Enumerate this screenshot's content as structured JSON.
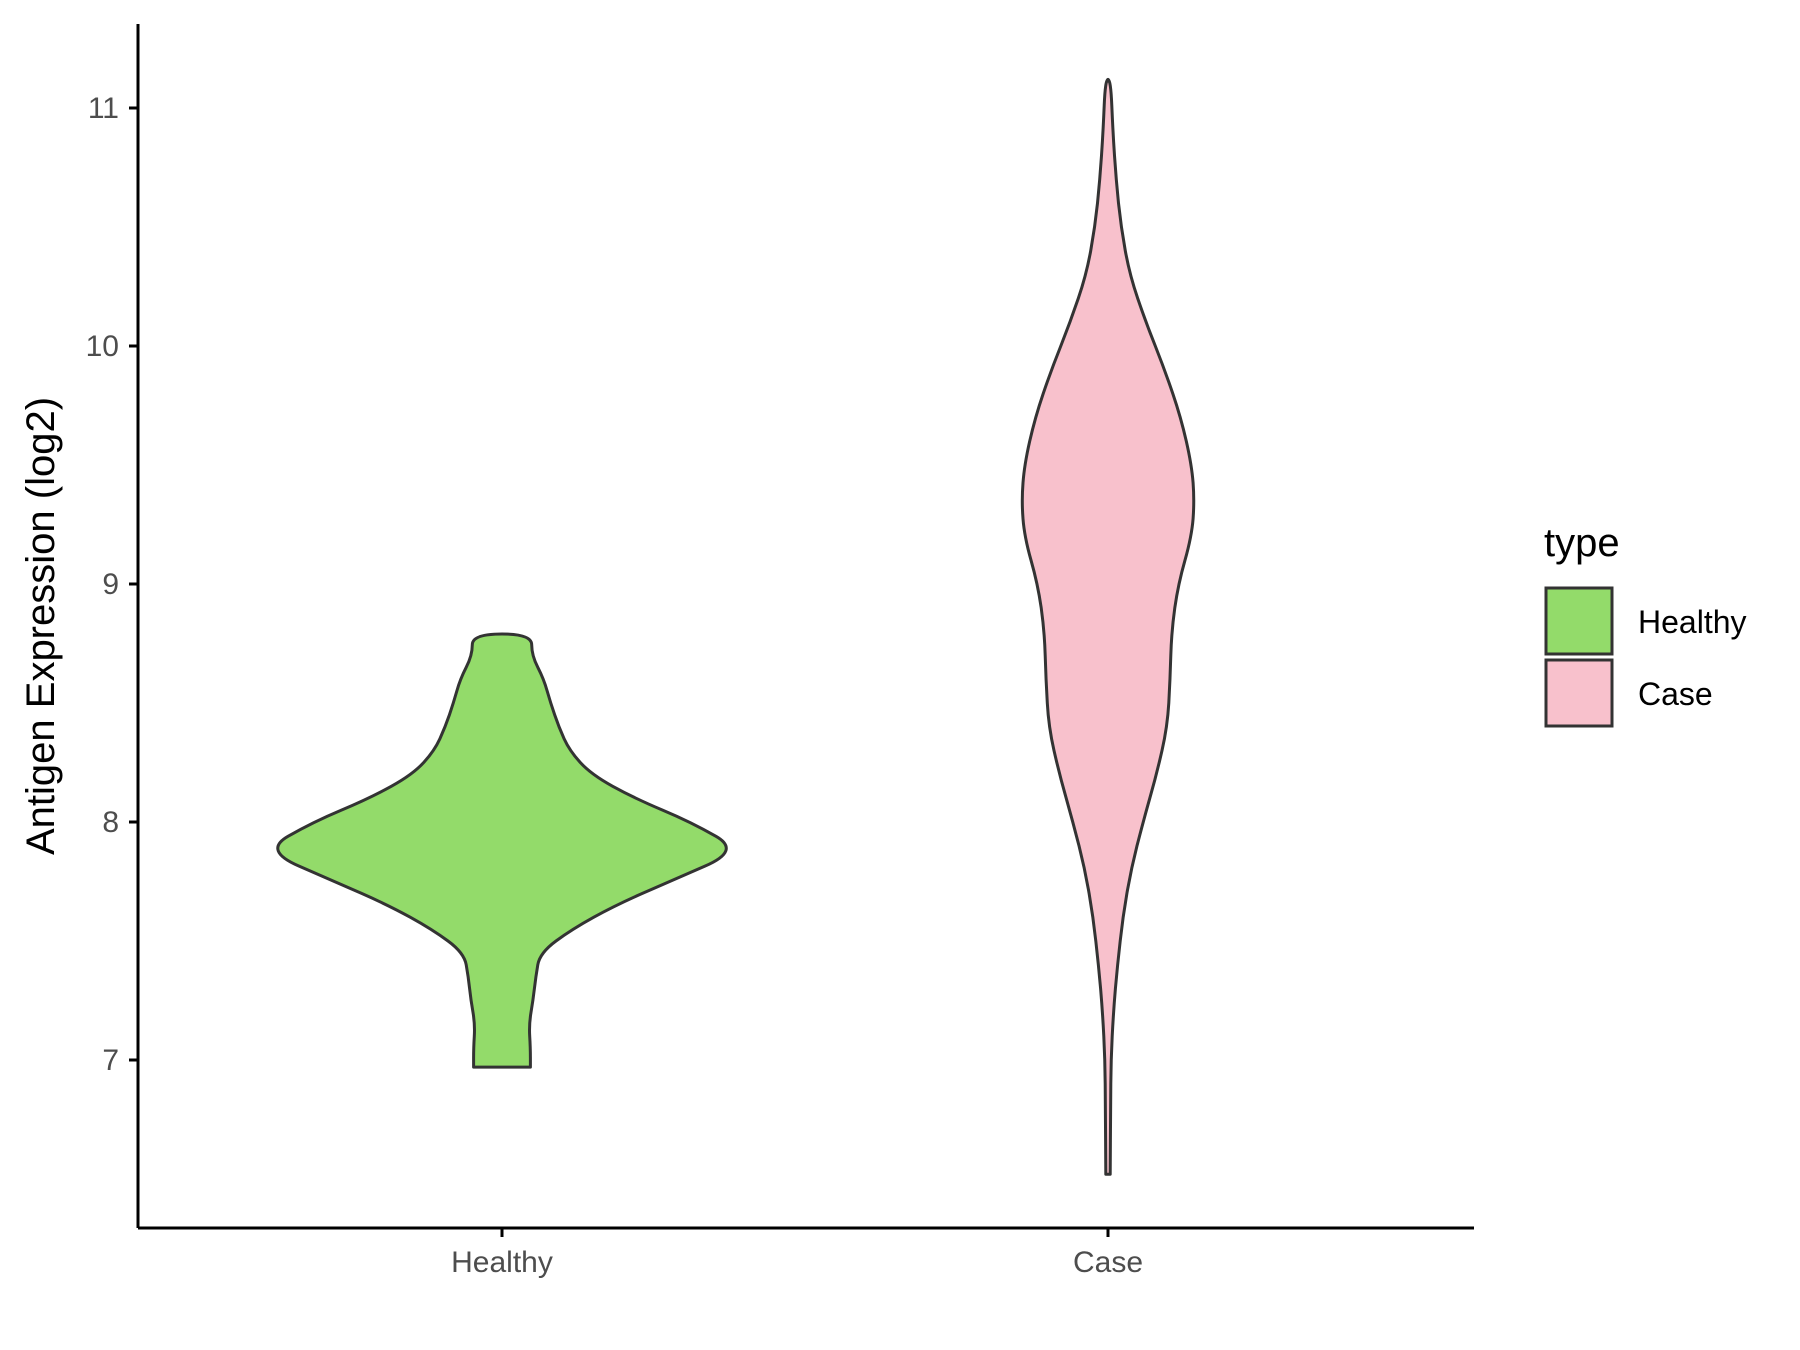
{
  "chart_data": {
    "type": "violin",
    "title": "",
    "xlabel": "",
    "ylabel": "Antigen Expression (log2)",
    "categories": [
      "Healthy",
      "Case"
    ],
    "yticks": [
      7,
      8,
      9,
      10,
      11
    ],
    "ylim": [
      6.3,
      11.35
    ],
    "grid": false,
    "legend": {
      "title": "type",
      "position": "right",
      "entries": [
        "Healthy",
        "Case"
      ]
    },
    "series": [
      {
        "name": "Healthy",
        "color": "#93DB6A",
        "min": 6.97,
        "max": 8.79,
        "density_profile": [
          [
            6.97,
            0.105
          ],
          [
            7.05,
            0.105
          ],
          [
            7.15,
            0.1
          ],
          [
            7.25,
            0.115
          ],
          [
            7.35,
            0.125
          ],
          [
            7.45,
            0.14
          ],
          [
            7.55,
            0.26
          ],
          [
            7.65,
            0.42
          ],
          [
            7.75,
            0.62
          ],
          [
            7.88,
            0.885
          ],
          [
            8.0,
            0.7
          ],
          [
            8.1,
            0.49
          ],
          [
            8.2,
            0.33
          ],
          [
            8.3,
            0.25
          ],
          [
            8.4,
            0.21
          ],
          [
            8.5,
            0.18
          ],
          [
            8.6,
            0.155
          ],
          [
            8.7,
            0.11
          ],
          [
            8.79,
            0.11
          ]
        ]
      },
      {
        "name": "Case",
        "color": "#F8C1CC",
        "min": 6.52,
        "max": 11.12,
        "density_profile": [
          [
            6.52,
            0.008
          ],
          [
            6.8,
            0.01
          ],
          [
            7.0,
            0.011
          ],
          [
            7.2,
            0.02
          ],
          [
            7.4,
            0.035
          ],
          [
            7.6,
            0.055
          ],
          [
            7.8,
            0.085
          ],
          [
            8.0,
            0.13
          ],
          [
            8.2,
            0.18
          ],
          [
            8.4,
            0.22
          ],
          [
            8.6,
            0.23
          ],
          [
            8.8,
            0.235
          ],
          [
            9.0,
            0.26
          ],
          [
            9.2,
            0.31
          ],
          [
            9.35,
            0.32
          ],
          [
            9.5,
            0.31
          ],
          [
            9.7,
            0.27
          ],
          [
            9.9,
            0.21
          ],
          [
            10.1,
            0.14
          ],
          [
            10.3,
            0.08
          ],
          [
            10.5,
            0.048
          ],
          [
            10.7,
            0.03
          ],
          [
            10.9,
            0.018
          ],
          [
            11.12,
            0.01
          ]
        ]
      }
    ]
  }
}
